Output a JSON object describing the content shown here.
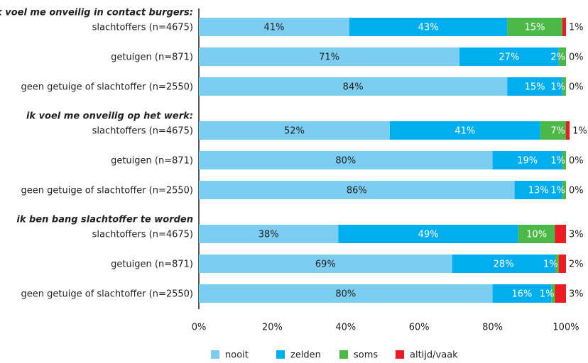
{
  "chart_data": {
    "type": "bar",
    "groups": [
      {
        "title": "ik voel me onveilig in contact burgers:",
        "categories": [
          "slachtoffers (n=4675)",
          "getuigen (n=871)",
          "geen getuige of slachtoffer (n=2550)"
        ]
      },
      {
        "title": "ik voel me onveilig op het werk:",
        "categories": [
          "slachtoffers (n=4675)",
          "getuigen (n=871)",
          "geen getuige of slachtoffer (n=2550)"
        ]
      },
      {
        "title": "ik ben bang slachtoffer te worden",
        "categories": [
          "slachtoffers (n=4675)",
          "getuigen (n=871)",
          "geen getuige of slachtoffer (n=2550)"
        ]
      }
    ],
    "series": [
      {
        "name": "nooit",
        "color": "#7dcdf1",
        "values": [
          41,
          71,
          84,
          52,
          80,
          86,
          38,
          69,
          80
        ],
        "value_labels": [
          "41%",
          "71%",
          "84%",
          "52%",
          "80%",
          "86%",
          "38%",
          "69%",
          "80%"
        ]
      },
      {
        "name": "zelden",
        "color": "#00aeef",
        "values": [
          43,
          27,
          15,
          41,
          19,
          13,
          49,
          28,
          16
        ],
        "value_labels": [
          "43%",
          "27%",
          "15%",
          "41%",
          "19%",
          "13%",
          "49%",
          "28%",
          "16%"
        ]
      },
      {
        "name": "soms",
        "color": "#4cb848",
        "values": [
          15,
          2,
          1,
          7,
          1,
          1,
          10,
          1,
          1
        ],
        "value_labels": [
          "15%",
          "2%",
          "1%",
          "7%",
          "1%",
          "1%",
          "10%",
          "1%",
          "1%"
        ]
      },
      {
        "name": "altijd/vaak",
        "color": "#ed1c24",
        "values": [
          1,
          0,
          0,
          1,
          0,
          0,
          3,
          2,
          3
        ],
        "value_labels": [
          "1%",
          "0%",
          "0%",
          "1%",
          "0%",
          "0%",
          "3%",
          "2%",
          "3%"
        ]
      }
    ],
    "xlim": [
      0,
      100
    ],
    "xticks": [
      {
        "value": 0,
        "label": "0%"
      },
      {
        "value": 20,
        "label": "20%"
      },
      {
        "value": 40,
        "label": "40%"
      },
      {
        "value": 60,
        "label": "60%"
      },
      {
        "value": 80,
        "label": "80%"
      },
      {
        "value": 100,
        "label": "100%"
      }
    ],
    "legend": "bottom"
  }
}
